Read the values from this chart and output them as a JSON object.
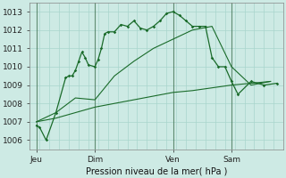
{
  "title": "Pression niveau de la mer( hPa )",
  "bg_color": "#cdeae4",
  "grid_color": "#a8d5cc",
  "line_color": "#1a6b2a",
  "ylim": [
    1005.5,
    1013.5
  ],
  "yticks": [
    1006,
    1007,
    1008,
    1009,
    1010,
    1011,
    1012,
    1013
  ],
  "xtick_labels": [
    "Jeu",
    "Dim",
    "Ven",
    "Sam"
  ],
  "xtick_pos": [
    0,
    9,
    21,
    30
  ],
  "xlim": [
    -1,
    38
  ],
  "vlines": [
    0,
    9,
    21,
    30
  ],
  "series1_x": [
    0,
    0.5,
    1.5,
    3,
    4.5,
    5,
    5.5,
    6,
    6.5,
    7,
    7.5,
    8,
    9,
    9.5,
    10,
    10.5,
    11,
    12,
    13,
    14,
    15,
    16,
    17,
    18,
    19,
    20,
    21,
    22,
    23,
    24,
    25,
    26,
    27,
    28,
    29,
    30,
    31,
    33,
    35,
    37
  ],
  "series1_y": [
    1006.8,
    1006.7,
    1006.0,
    1007.5,
    1009.4,
    1009.5,
    1009.5,
    1009.8,
    1010.3,
    1010.8,
    1010.5,
    1010.1,
    1010.0,
    1010.4,
    1011.0,
    1011.8,
    1011.9,
    1011.9,
    1012.3,
    1012.2,
    1012.5,
    1012.1,
    1012.0,
    1012.2,
    1012.5,
    1012.9,
    1013.0,
    1012.8,
    1012.5,
    1012.2,
    1012.2,
    1012.2,
    1010.5,
    1010.0,
    1010.0,
    1009.2,
    1008.5,
    1009.2,
    1009.0,
    1009.1
  ],
  "series2_x": [
    0,
    3,
    6,
    9,
    12,
    15,
    18,
    21,
    24,
    27,
    30,
    33,
    36
  ],
  "series2_y": [
    1007.0,
    1007.5,
    1008.3,
    1008.2,
    1009.5,
    1010.3,
    1011.0,
    1011.5,
    1012.0,
    1012.2,
    1010.0,
    1009.0,
    1009.2
  ],
  "series3_x": [
    0,
    3,
    6,
    9,
    12,
    15,
    18,
    21,
    24,
    27,
    30,
    33,
    36
  ],
  "series3_y": [
    1007.0,
    1007.2,
    1007.5,
    1007.8,
    1008.0,
    1008.2,
    1008.4,
    1008.6,
    1008.7,
    1008.85,
    1009.0,
    1009.1,
    1009.2
  ]
}
